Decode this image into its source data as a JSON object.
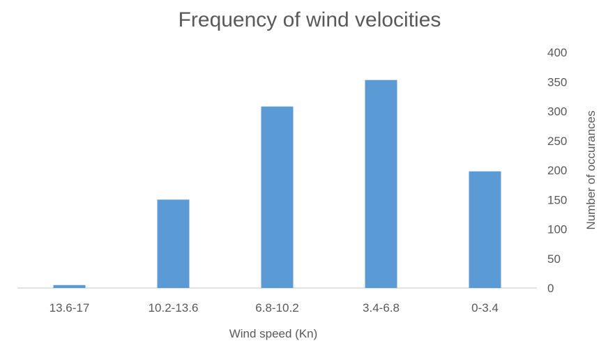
{
  "chart_data": {
    "type": "bar",
    "title": "Frequency of wind velocities",
    "xlabel": "Wind speed (Kn)",
    "ylabel": "Number  of occurances",
    "categories": [
      "13.6-17",
      "10.2-13.6",
      "6.8-10.2",
      "3.4-6.8",
      "0-3.4"
    ],
    "values": [
      5,
      150,
      308,
      353,
      198
    ],
    "ylim": [
      0,
      400
    ],
    "yticks": [
      "0",
      "50",
      "100",
      "150",
      "200",
      "250",
      "300",
      "350",
      "400"
    ],
    "y_axis_side": "right",
    "grid": false,
    "legend": "none",
    "bar_color": "#5b9bd5",
    "text_color": "#595959",
    "axis_color": "#d9d9d9"
  }
}
